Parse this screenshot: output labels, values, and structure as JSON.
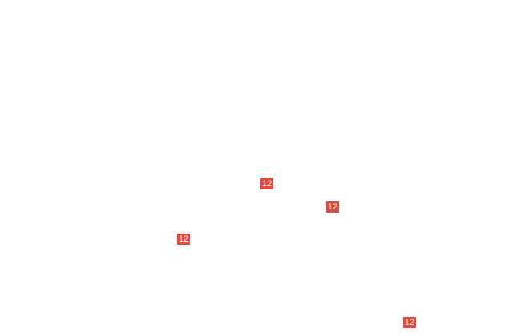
{
  "badge_color": "#e8453c",
  "badges": [
    {
      "label": "12"
    },
    {
      "label": "12"
    },
    {
      "label": "12"
    },
    {
      "label": "12"
    }
  ]
}
